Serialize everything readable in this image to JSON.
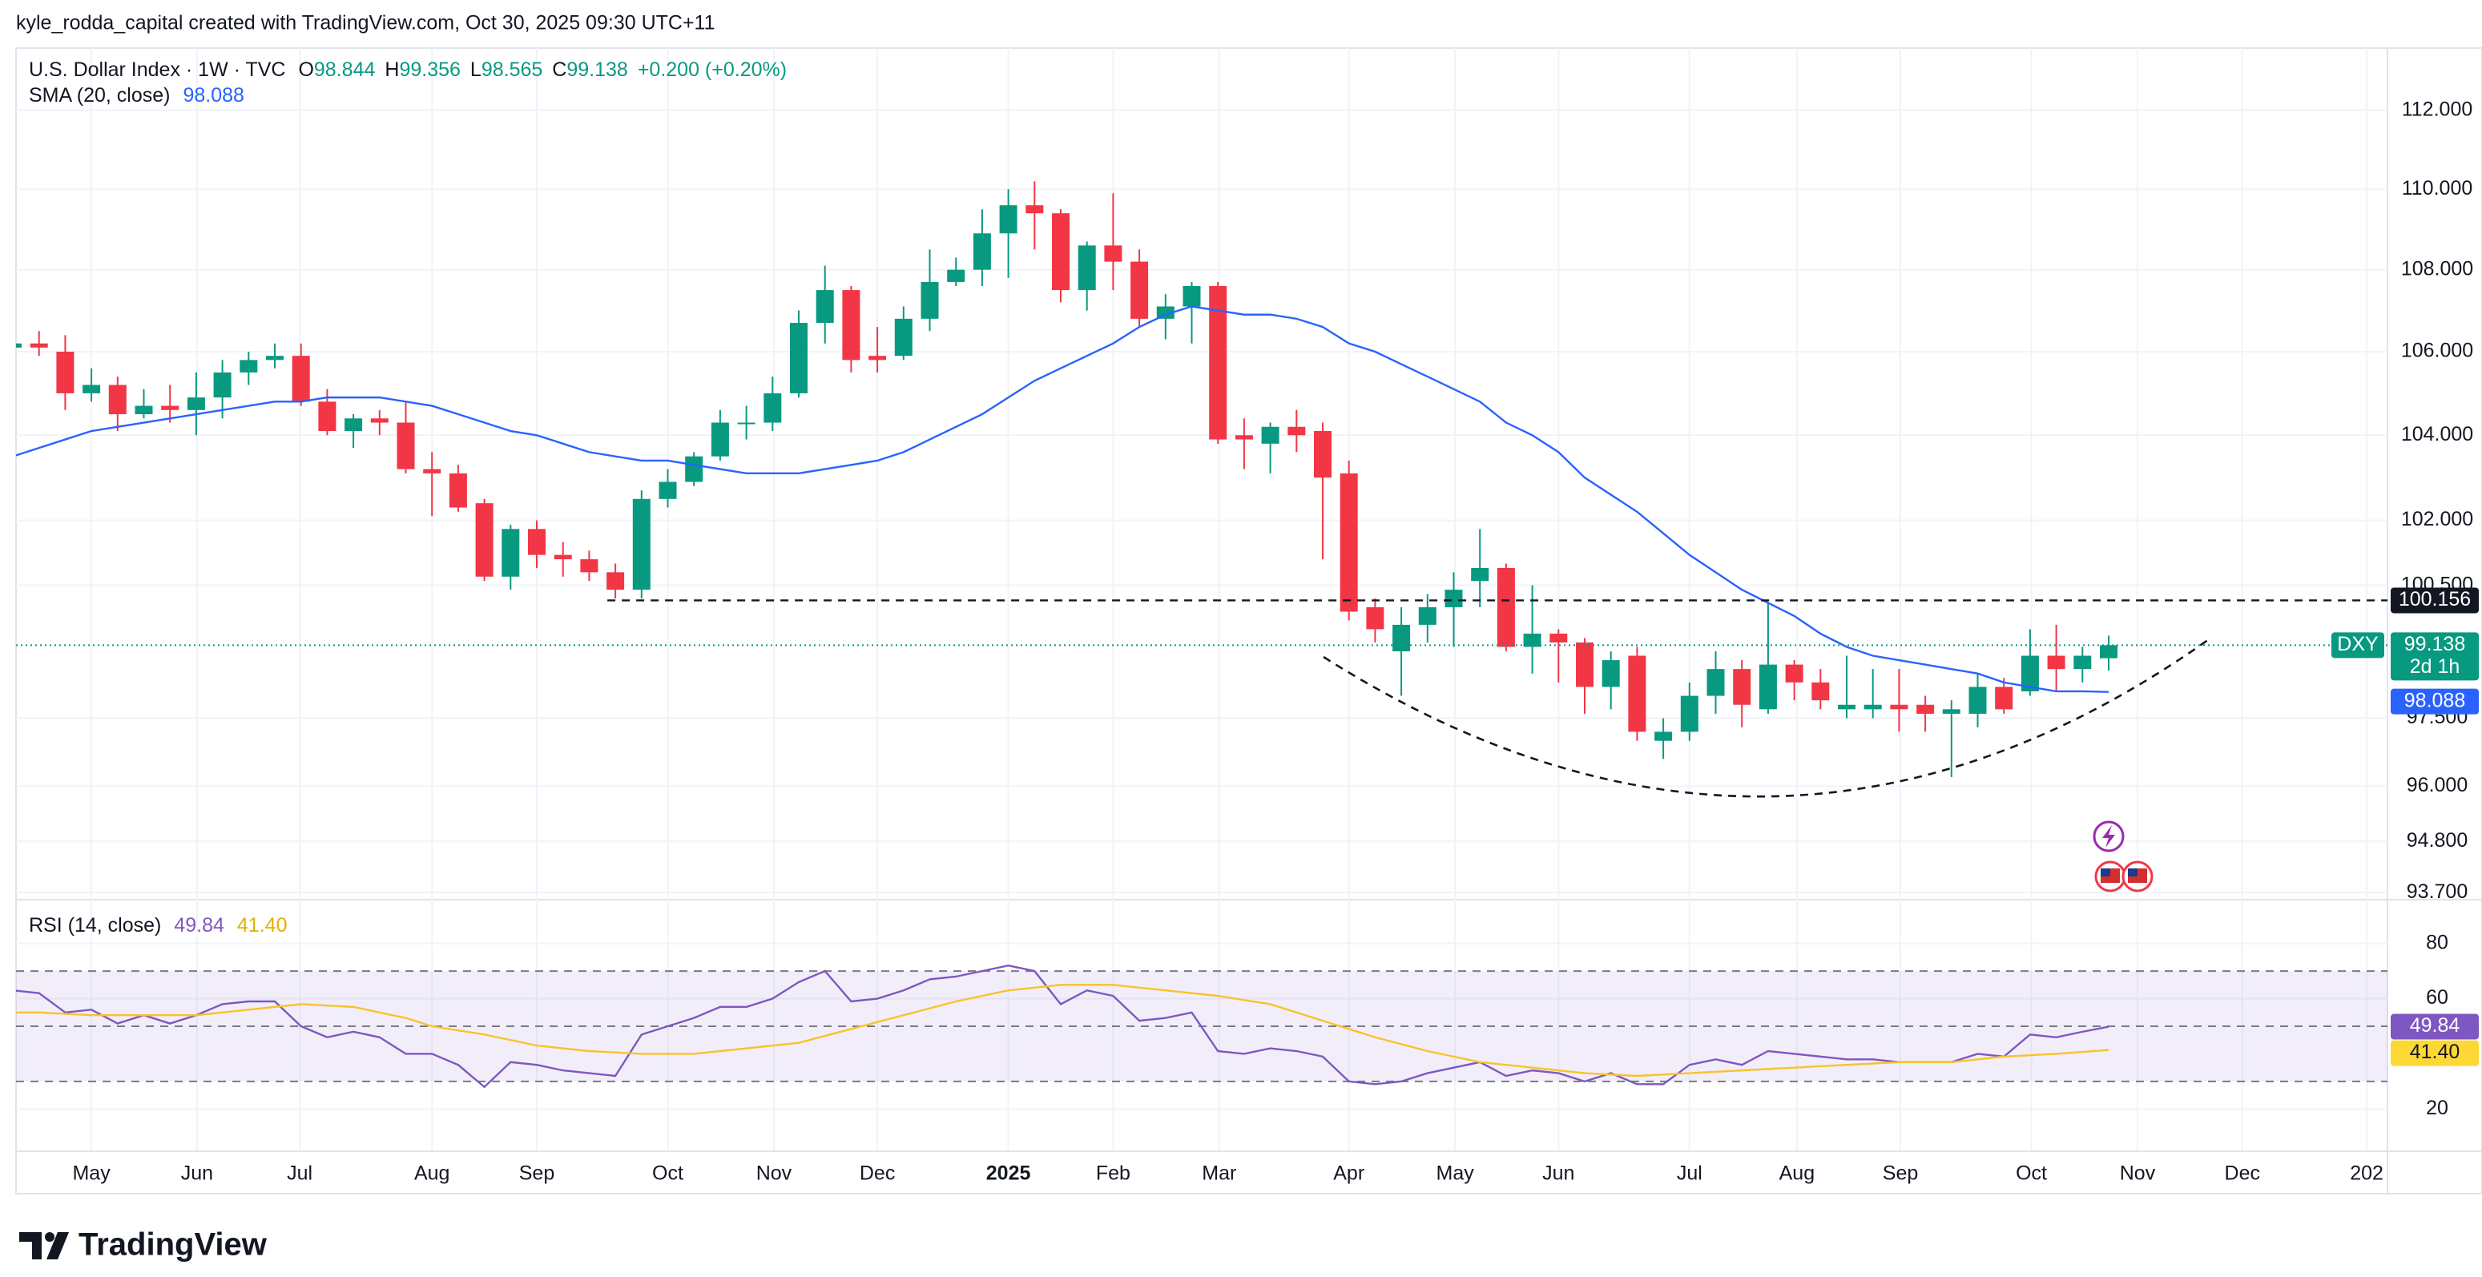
{
  "header": {
    "credit": "kyle_rodda_capital created with TradingView.com, Oct 30, 2025 09:30 UTC+11"
  },
  "footer": {
    "brand": "TradingView"
  },
  "chart_data": [
    {
      "type": "candlestick",
      "title": "U.S. Dollar Index · 1W · TVC",
      "symbol": "DXY",
      "ohlc_labels": [
        "O",
        "H",
        "L",
        "C"
      ],
      "change": "+0.200 (+0.20%)",
      "countdown": "2d 1h",
      "up_color": "#089981",
      "down_color": "#f23645",
      "log_scale": true,
      "grid": true,
      "ylim": [
        93.6,
        113.6
      ],
      "yticks": [
        {
          "value": 93.7,
          "label": "93.700"
        },
        {
          "value": 94.8,
          "label": "94.800"
        },
        {
          "value": 96,
          "label": "96.000"
        },
        {
          "value": 97.5,
          "label": "97.500"
        },
        {
          "value": 100.5,
          "label": "100.500"
        },
        {
          "value": 102,
          "label": "102.000"
        },
        {
          "value": 104,
          "label": "104.000"
        },
        {
          "value": 106,
          "label": "106.000"
        },
        {
          "value": 108,
          "label": "108.000"
        },
        {
          "value": 110,
          "label": "110.000"
        },
        {
          "value": 112,
          "label": "112.000"
        }
      ],
      "xticks": [
        {
          "value": 3.0,
          "label": "May"
        },
        {
          "value": 7.03,
          "label": "Jun"
        },
        {
          "value": 10.95,
          "label": "Jul"
        },
        {
          "value": 16.0,
          "label": "Aug"
        },
        {
          "value": 20.0,
          "label": "Sep"
        },
        {
          "value": 25.0,
          "label": "Oct"
        },
        {
          "value": 29.05,
          "label": "Nov"
        },
        {
          "value": 33.0,
          "label": "Dec"
        },
        {
          "value": 38.0,
          "label": "2025"
        },
        {
          "value": 42.0,
          "label": "Feb"
        },
        {
          "value": 46.05,
          "label": "Mar"
        },
        {
          "value": 51.0,
          "label": "Apr"
        },
        {
          "value": 55.05,
          "label": "May"
        },
        {
          "value": 59.0,
          "label": "Jun"
        },
        {
          "value": 64.0,
          "label": "Jul"
        },
        {
          "value": 68.1,
          "label": "Aug"
        },
        {
          "value": 72.05,
          "label": "Sep"
        },
        {
          "value": 77.05,
          "label": "Oct"
        },
        {
          "value": 81.1,
          "label": "Nov"
        },
        {
          "value": 85.1,
          "label": "Dec"
        },
        {
          "value": 89.85,
          "label": "202"
        }
      ],
      "price_line": 100.156,
      "open": [
        106.1,
        106.2,
        106.0,
        105.0,
        105.2,
        104.5,
        104.7,
        104.6,
        104.9,
        105.5,
        105.8,
        105.9,
        104.8,
        104.1,
        104.4,
        104.3,
        103.2,
        103.1,
        102.4,
        100.7,
        101.8,
        101.2,
        101.1,
        100.8,
        100.4,
        102.5,
        102.9,
        103.5,
        104.3,
        104.3,
        105.0,
        106.7,
        107.5,
        105.9,
        105.9,
        106.8,
        107.7,
        108.0,
        108.9,
        109.6,
        109.4,
        107.5,
        108.6,
        108.2,
        106.8,
        107.1,
        107.6,
        104.0,
        103.8,
        104.2,
        104.1,
        103.1,
        100.0,
        99.0,
        99.6,
        100.0,
        100.6,
        100.9,
        99.1,
        99.4,
        99.2,
        98.2,
        98.9,
        97.0,
        97.2,
        98.0,
        98.6,
        97.7,
        98.7,
        98.3,
        97.7,
        97.7,
        97.8,
        97.8,
        97.6,
        97.6,
        98.2,
        98.1,
        98.9,
        98.6,
        98.844
      ],
      "high": [
        106.2,
        106.5,
        106.4,
        105.6,
        105.4,
        105.1,
        105.2,
        105.5,
        105.8,
        106.0,
        106.2,
        106.2,
        105.1,
        104.5,
        104.6,
        104.8,
        103.6,
        103.3,
        102.5,
        101.9,
        102.0,
        101.5,
        101.3,
        101.0,
        102.7,
        103.2,
        103.6,
        104.6,
        104.7,
        105.4,
        107.0,
        108.1,
        107.6,
        106.6,
        107.1,
        108.5,
        108.3,
        109.5,
        110.0,
        110.2,
        109.5,
        108.7,
        109.9,
        108.5,
        107.4,
        107.7,
        107.7,
        104.4,
        104.3,
        104.6,
        104.3,
        103.4,
        100.2,
        100.0,
        100.3,
        100.8,
        101.8,
        101.0,
        100.5,
        99.5,
        99.3,
        99.0,
        99.1,
        97.5,
        98.3,
        99.0,
        98.8,
        100.1,
        98.8,
        98.6,
        98.9,
        98.6,
        98.6,
        98.0,
        97.9,
        98.5,
        98.4,
        99.5,
        99.6,
        99.1,
        99.356
      ],
      "low": [
        106.0,
        105.9,
        104.6,
        104.8,
        104.1,
        104.4,
        104.3,
        104.0,
        104.4,
        105.2,
        105.6,
        104.7,
        104.0,
        103.7,
        104.0,
        103.1,
        102.1,
        102.2,
        100.6,
        100.4,
        100.9,
        100.7,
        100.6,
        100.2,
        100.2,
        102.3,
        102.8,
        103.4,
        103.9,
        104.1,
        104.9,
        106.2,
        105.5,
        105.5,
        105.8,
        106.5,
        107.6,
        107.6,
        107.8,
        108.5,
        107.2,
        107.0,
        107.5,
        106.6,
        106.3,
        106.2,
        103.8,
        103.2,
        103.1,
        103.6,
        101.1,
        99.7,
        99.2,
        98.0,
        99.2,
        99.1,
        100.0,
        99.0,
        98.5,
        98.3,
        97.6,
        97.7,
        97.0,
        96.6,
        97.0,
        97.6,
        97.3,
        97.6,
        97.9,
        97.7,
        97.5,
        97.5,
        97.2,
        97.2,
        96.2,
        97.3,
        97.6,
        98.0,
        98.1,
        98.3,
        98.565
      ],
      "close": [
        106.2,
        106.1,
        105.0,
        105.2,
        104.5,
        104.7,
        104.6,
        104.9,
        105.5,
        105.8,
        105.9,
        104.8,
        104.1,
        104.4,
        104.3,
        103.2,
        103.1,
        102.3,
        100.7,
        101.8,
        101.2,
        101.1,
        100.8,
        100.4,
        102.5,
        102.9,
        103.5,
        104.3,
        104.3,
        105.0,
        106.7,
        107.5,
        105.8,
        105.8,
        106.8,
        107.7,
        108.0,
        108.9,
        109.6,
        109.4,
        107.5,
        108.6,
        108.2,
        106.8,
        107.1,
        107.6,
        103.9,
        103.9,
        104.2,
        104.0,
        103.0,
        99.9,
        99.5,
        99.6,
        100.0,
        100.4,
        100.9,
        99.1,
        99.4,
        99.2,
        98.2,
        98.8,
        97.2,
        97.2,
        98.0,
        98.6,
        97.8,
        98.7,
        98.3,
        97.9,
        97.8,
        97.8,
        97.7,
        97.6,
        97.7,
        98.2,
        97.7,
        98.9,
        98.6,
        98.9,
        99.138
      ],
      "series": [
        {
          "name": "SMA (20, close)",
          "color": "#2962ff",
          "values": [
            103.5,
            103.7,
            103.9,
            104.1,
            104.2,
            104.3,
            104.4,
            104.5,
            104.6,
            104.7,
            104.8,
            104.8,
            104.9,
            104.9,
            104.9,
            104.8,
            104.7,
            104.5,
            104.3,
            104.1,
            104.0,
            103.8,
            103.6,
            103.5,
            103.4,
            103.4,
            103.3,
            103.2,
            103.1,
            103.1,
            103.1,
            103.2,
            103.3,
            103.4,
            103.6,
            103.9,
            104.2,
            104.5,
            104.9,
            105.3,
            105.6,
            105.9,
            106.2,
            106.6,
            106.9,
            107.1,
            107.0,
            106.9,
            106.9,
            106.8,
            106.6,
            106.2,
            106.0,
            105.7,
            105.4,
            105.1,
            104.8,
            104.3,
            104.0,
            103.6,
            103.0,
            102.6,
            102.2,
            101.7,
            101.2,
            100.8,
            100.4,
            100.1,
            99.8,
            99.4,
            99.1,
            98.9,
            98.8,
            98.7,
            98.6,
            98.5,
            98.3,
            98.2,
            98.1,
            98.1,
            98.088
          ]
        }
      ]
    },
    {
      "type": "line",
      "title": "RSI (14, close)",
      "ylim": [
        5,
        95
      ],
      "yticks": [
        20,
        60,
        80
      ],
      "band": [
        30,
        70
      ],
      "midline": 50,
      "band_color": "#7e57c2",
      "series": [
        {
          "color": "#7e57c2",
          "values": [
            63,
            62,
            55,
            56,
            51,
            54,
            51,
            54,
            58,
            59,
            59,
            50,
            46,
            48,
            46,
            40,
            40,
            36,
            28,
            37,
            36,
            34,
            33,
            32,
            47,
            50,
            53,
            57,
            57,
            60,
            66,
            70,
            59,
            60,
            63,
            67,
            68,
            70,
            72,
            70,
            58,
            63,
            61,
            52,
            53,
            55,
            41,
            40,
            42,
            41,
            39,
            30,
            29,
            30,
            33,
            35,
            37,
            32,
            34,
            33,
            30,
            33,
            29,
            29,
            36,
            38,
            36,
            41,
            40,
            39,
            38,
            38,
            37,
            37,
            37,
            40,
            39,
            47,
            46,
            48,
            49.84
          ]
        },
        {
          "color": "#f7c32b",
          "values": [
            55,
            55,
            54.5,
            54,
            54,
            54,
            54,
            54,
            55,
            56,
            57,
            58,
            57.5,
            57,
            55,
            53,
            50,
            48.5,
            47,
            45,
            43,
            42,
            41,
            40.5,
            40,
            40,
            40,
            41,
            42,
            43,
            44,
            46.5,
            49,
            51.5,
            54,
            56.5,
            59,
            61,
            63,
            64,
            65,
            65,
            65,
            64,
            63,
            62,
            61,
            59.5,
            58,
            55,
            52,
            49,
            46,
            43.5,
            41,
            39,
            37,
            36,
            35,
            34,
            33,
            32.5,
            32,
            32.5,
            33,
            33.5,
            34,
            34.5,
            35,
            35.5,
            36,
            36.5,
            37,
            37,
            37,
            38,
            39,
            39.5,
            40,
            40.7,
            41.4
          ],
          "value_labels": [
            null,
            null,
            null,
            null,
            null,
            null,
            null,
            null,
            null,
            null,
            null,
            null,
            null,
            null,
            null,
            null,
            null,
            null,
            null,
            null,
            null,
            null,
            null,
            null,
            null,
            null,
            null,
            null,
            null,
            null,
            null,
            null,
            null,
            null,
            null,
            null,
            null,
            null,
            null,
            null,
            null,
            null,
            null,
            null,
            null,
            null,
            null,
            null,
            null,
            null,
            null,
            null,
            null,
            null,
            null,
            null,
            null,
            null,
            null,
            null,
            null,
            null,
            null,
            null,
            null,
            null,
            null,
            null,
            null,
            null,
            null,
            null,
            null,
            null,
            null,
            null,
            null,
            null,
            null,
            null,
            "41.40"
          ]
        }
      ]
    }
  ]
}
